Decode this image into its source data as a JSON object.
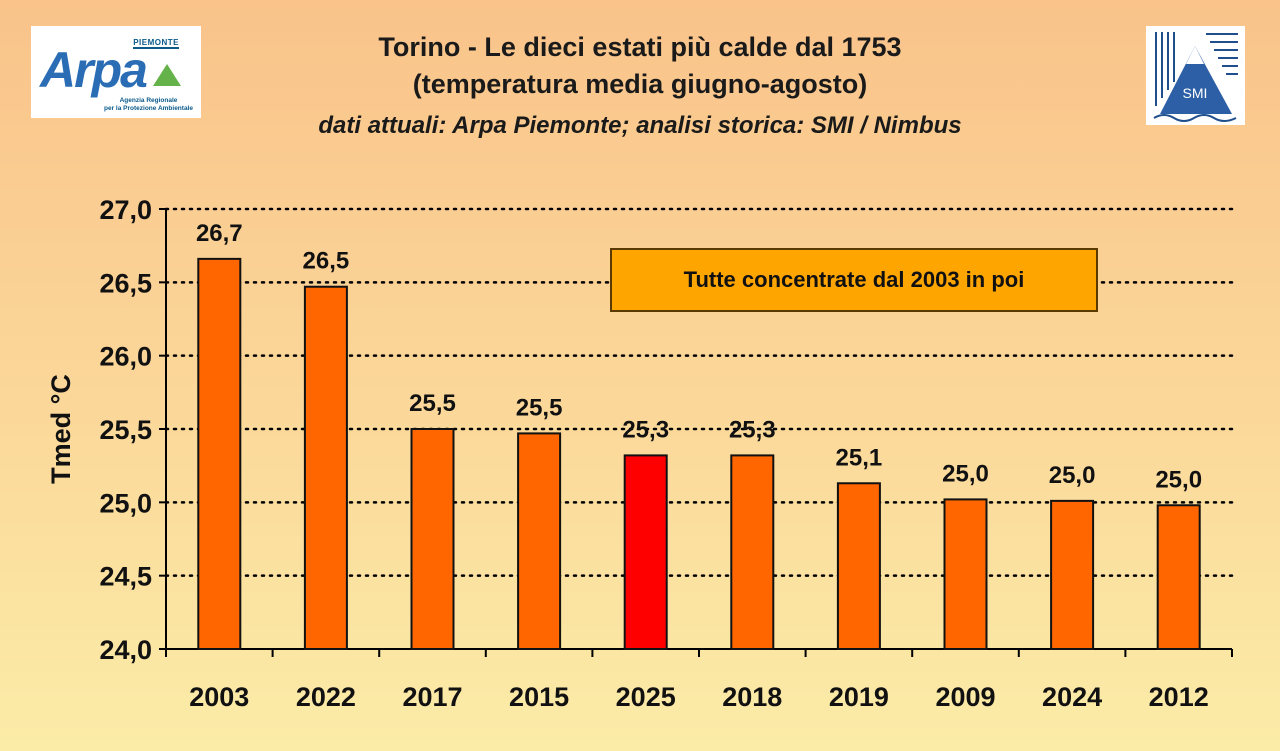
{
  "header": {
    "title_line1": "Torino - Le dieci estati più calde dal 1753",
    "title_line2": "(temperatura media giugno-agosto)",
    "subtitle": "dati attuali: Arpa Piemonte; analisi storica: SMI / Nimbus"
  },
  "logos": {
    "arpa": {
      "region": "PIEMONTE",
      "word": "Arpa",
      "sub_line1": "Agenzia Regionale",
      "sub_line2": "per la Protezione Ambientale"
    },
    "smi": {
      "text": "SMI"
    }
  },
  "callout": {
    "text": "Tutte concentrate dal 2003 in poi"
  },
  "colors": {
    "bar": "#ff6600",
    "highlight_bar": "#ff0000",
    "bar_stroke": "#111111",
    "callout_bg": "#ffa500"
  },
  "chart_data": {
    "type": "bar",
    "title": "Torino - Le dieci estati più calde dal 1753",
    "ylabel": "Tmed °C",
    "xlabel": "",
    "ylim": [
      24.0,
      27.0
    ],
    "yticks": [
      24.0,
      24.5,
      25.0,
      25.5,
      26.0,
      26.5,
      27.0
    ],
    "ytick_labels": [
      "24,0",
      "24,5",
      "25,0",
      "25,5",
      "26,0",
      "26,5",
      "27,0"
    ],
    "grid": "horizontal dotted",
    "categories": [
      "2003",
      "2022",
      "2017",
      "2015",
      "2025",
      "2018",
      "2019",
      "2009",
      "2024",
      "2012"
    ],
    "values": [
      26.66,
      26.47,
      25.5,
      25.47,
      25.32,
      25.32,
      25.13,
      25.02,
      25.01,
      24.98
    ],
    "data_labels": [
      "26,7",
      "26,5",
      "25,5",
      "25,5",
      "25,3",
      "25,3",
      "25,1",
      "25,0",
      "25,0",
      "25,0"
    ],
    "highlight": "2025"
  }
}
